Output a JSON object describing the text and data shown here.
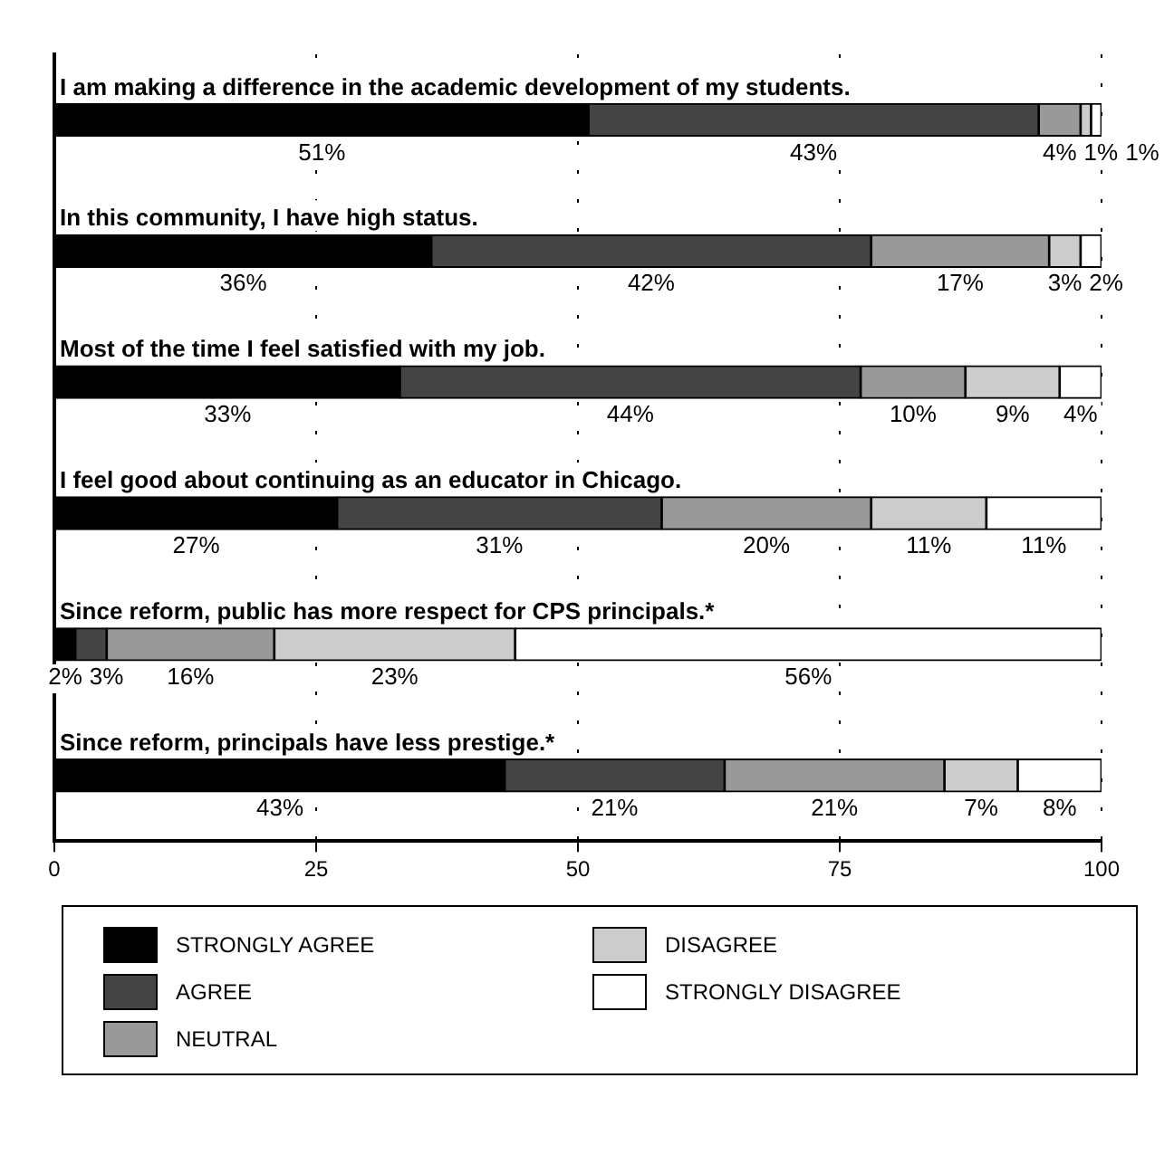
{
  "chart_data": {
    "type": "bar",
    "orientation": "horizontal",
    "stacked": true,
    "categories": [
      "I am making a difference in the academic development of my students.",
      "In this community, I have high status.",
      "Most of the time I feel satisfied with my job.",
      "I feel good about continuing as an educator in Chicago.",
      "Since reform, public has more respect for CPS principals.*",
      "Since reform, principals have less prestige.*"
    ],
    "series": [
      {
        "name": "STRONGLY AGREE",
        "color": "#000000",
        "values": [
          51,
          36,
          33,
          27,
          2,
          43
        ],
        "value_labels": [
          "51%",
          "36%",
          "33%",
          "27%",
          "2%",
          "43%"
        ]
      },
      {
        "name": "AGREE",
        "color": "#444444",
        "values": [
          43,
          42,
          44,
          31,
          3,
          21
        ],
        "value_labels": [
          "43%",
          "42%",
          "44%",
          "31%",
          "3%",
          "21%"
        ]
      },
      {
        "name": "NEUTRAL",
        "color": "#999999",
        "values": [
          4,
          17,
          10,
          20,
          16,
          21
        ],
        "value_labels": [
          "4%",
          "17%",
          "10%",
          "20%",
          "16%",
          "21%"
        ]
      },
      {
        "name": "DISAGREE",
        "color": "#cccccc",
        "values": [
          1,
          3,
          9,
          11,
          23,
          7
        ],
        "value_labels": [
          "1%",
          "3%",
          "9%",
          "11%",
          "23%",
          "7%"
        ]
      },
      {
        "name": "STRONGLY DISAGREE",
        "color": "#ffffff",
        "values": [
          1,
          2,
          4,
          11,
          56,
          8
        ],
        "value_labels": [
          "1%",
          "2%",
          "4%",
          "11%",
          "56%",
          "8%"
        ]
      }
    ],
    "xlim": [
      0,
      100
    ],
    "xticks": [
      0,
      25,
      50,
      75,
      100
    ],
    "grid": "x",
    "legend": "bottom"
  }
}
